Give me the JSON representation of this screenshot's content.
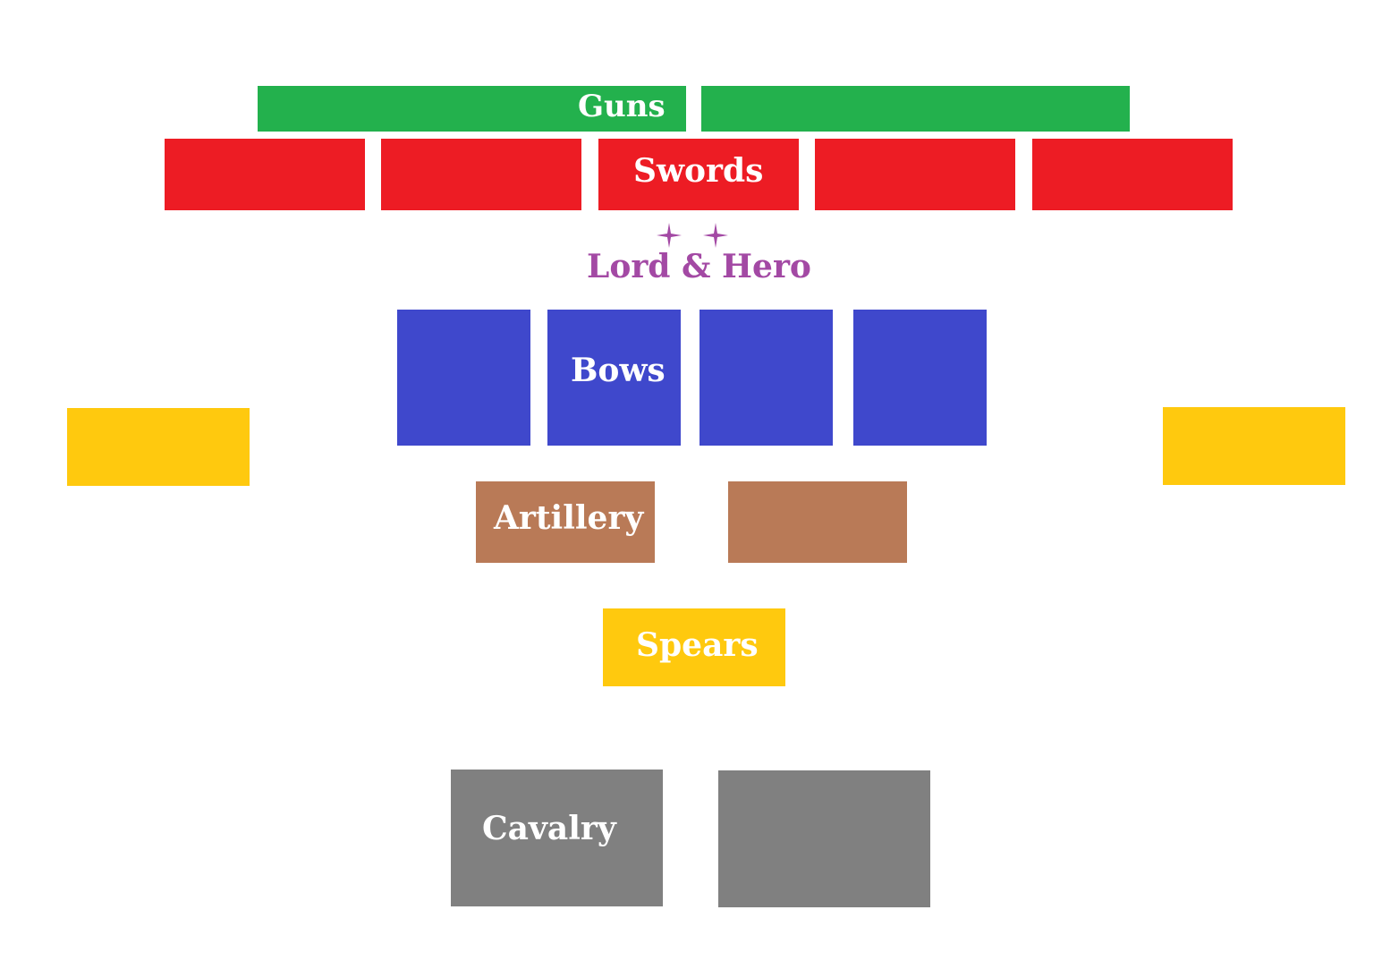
{
  "colors": {
    "guns": "#23b14d",
    "swords": "#ed1c24",
    "hero": "#a349a4",
    "bows": "#3f48cc",
    "flanks": "#ffc90e",
    "artillery": "#b97a57",
    "spears": "#ffc90e",
    "cavalry": "#808080"
  },
  "labels": {
    "guns": "Guns",
    "swords": "Swords",
    "hero": "Lord & Hero",
    "bows": "Bows",
    "artillery": "Artillery",
    "spears": "Spears",
    "cavalry": "Cavalry"
  },
  "icons": [
    "star-icon",
    "star-icon"
  ]
}
